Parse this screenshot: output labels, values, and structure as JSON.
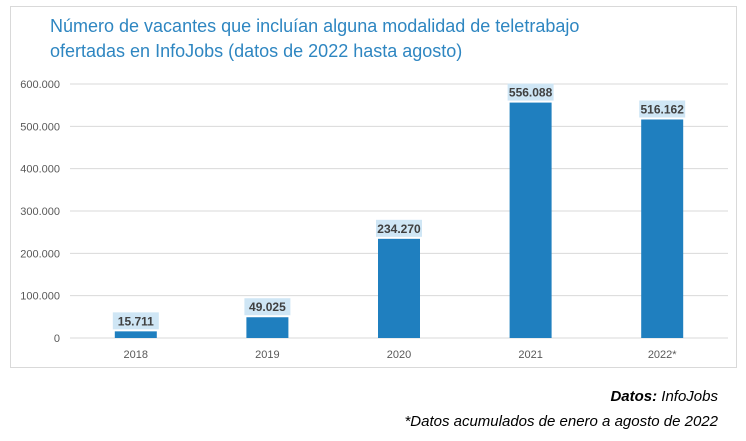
{
  "chart_data": {
    "type": "bar",
    "title_line1": "Número de vacantes que incluían alguna modalidad de teletrabajo",
    "title_line2": "ofertadas en InfoJobs (datos de 2022 hasta agosto)",
    "categories": [
      "2018",
      "2019",
      "2020",
      "2021",
      "2022*"
    ],
    "values": [
      15711,
      49025,
      234270,
      556088,
      516162
    ],
    "value_labels": [
      "15.711",
      "49.025",
      "234.270",
      "556.088",
      "516.162"
    ],
    "ylim": [
      0,
      600000
    ],
    "yticks": [
      0,
      100000,
      200000,
      300000,
      400000,
      500000,
      600000
    ],
    "ytick_labels": [
      "0",
      "100.000",
      "200.000",
      "300.000",
      "400.000",
      "500.000",
      "600.000"
    ],
    "xlabel": "",
    "ylabel": "",
    "grid": true,
    "bar_color": "#1f7fbf",
    "label_bg_color": "#cfe6f5",
    "title_color": "#2e86c1"
  },
  "notes": {
    "source_label": "Datos:",
    "source_value": " InfoJobs",
    "footnote": "*Datos acumulados de enero a agosto de 2022"
  }
}
